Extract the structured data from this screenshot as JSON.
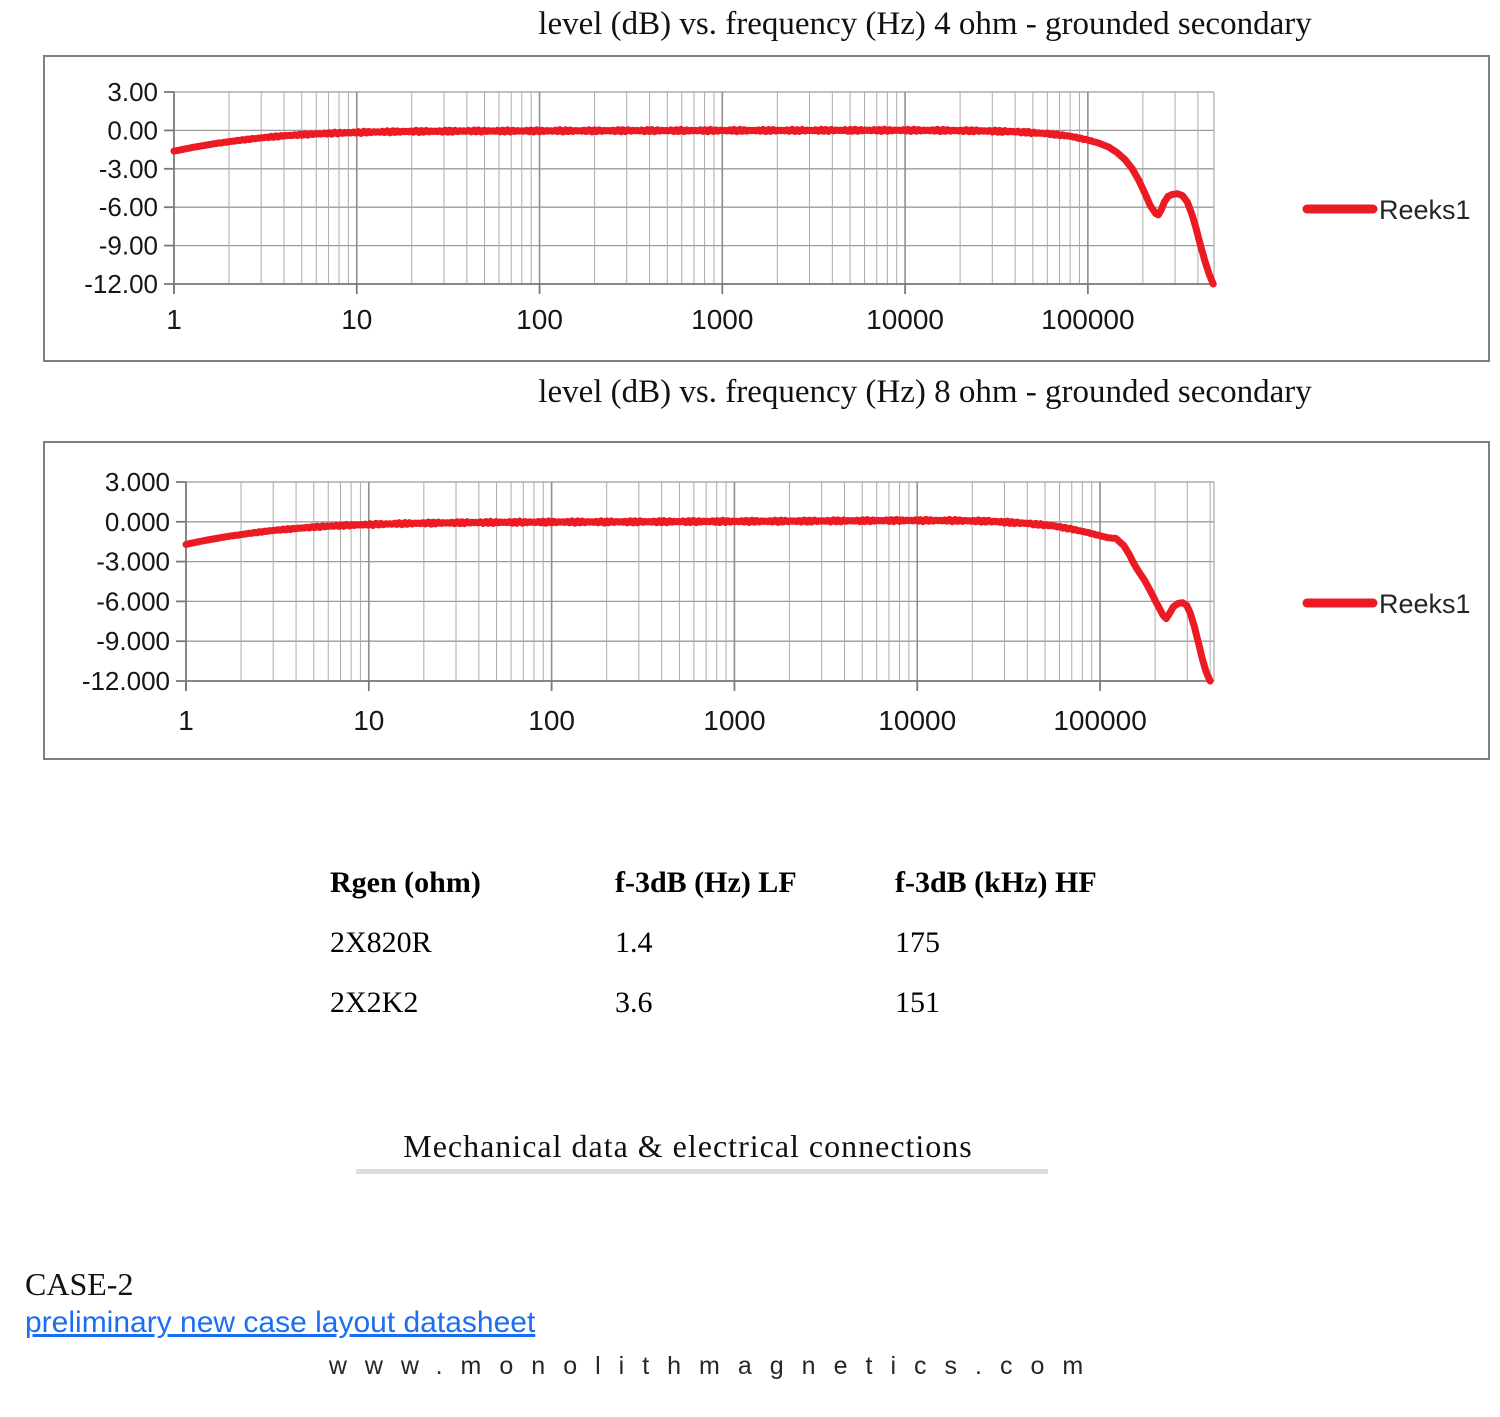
{
  "chart_data": [
    {
      "type": "line",
      "title": "level (dB) vs. frequency (Hz) 4 ohm - grounded secondary",
      "x_scale": "log",
      "xlim": [
        1,
        490000
      ],
      "ylim": [
        -12,
        3
      ],
      "grid": true,
      "legend_position": "right",
      "x_tick_labels": [
        "1",
        "10",
        "100",
        "1000",
        "10000",
        "100000"
      ],
      "x_tick_values": [
        1,
        10,
        100,
        1000,
        10000,
        100000
      ],
      "y_tick_labels": [
        "3.00",
        "0.00",
        "-3.00",
        "-6.00",
        "-9.00",
        "-12.00"
      ],
      "y_tick_values": [
        3,
        0,
        -3,
        -6,
        -9,
        -12
      ],
      "series": [
        {
          "name": "Reeks1",
          "color": "#ec1b23",
          "points": [
            [
              1,
              -1.62
            ],
            [
              1.3,
              -1.3
            ],
            [
              1.7,
              -1.02
            ],
            [
              2.2,
              -0.8
            ],
            [
              3,
              -0.58
            ],
            [
              4,
              -0.42
            ],
            [
              5.5,
              -0.3
            ],
            [
              8,
              -0.2
            ],
            [
              12,
              -0.13
            ],
            [
              20,
              -0.08
            ],
            [
              40,
              -0.05
            ],
            [
              100,
              -0.04
            ],
            [
              300,
              -0.02
            ],
            [
              1000,
              -0.01
            ],
            [
              3000,
              0
            ],
            [
              8000,
              0.01
            ],
            [
              15000,
              0
            ],
            [
              25000,
              -0.03
            ],
            [
              40000,
              -0.1
            ],
            [
              60000,
              -0.25
            ],
            [
              80000,
              -0.45
            ],
            [
              100000,
              -0.75
            ],
            [
              115000,
              -1
            ],
            [
              130000,
              -1.3
            ],
            [
              145000,
              -1.75
            ],
            [
              160000,
              -2.3
            ],
            [
              175000,
              -3
            ],
            [
              190000,
              -3.9
            ],
            [
              205000,
              -4.9
            ],
            [
              220000,
              -5.9
            ],
            [
              235000,
              -6.5
            ],
            [
              243000,
              -6.6
            ],
            [
              252000,
              -6.2
            ],
            [
              262000,
              -5.6
            ],
            [
              275000,
              -5.15
            ],
            [
              290000,
              -5
            ],
            [
              310000,
              -4.95
            ],
            [
              330000,
              -5.1
            ],
            [
              350000,
              -5.6
            ],
            [
              370000,
              -6.5
            ],
            [
              390000,
              -7.6
            ],
            [
              410000,
              -8.8
            ],
            [
              435000,
              -10.1
            ],
            [
              460000,
              -11.2
            ],
            [
              485000,
              -12
            ]
          ]
        }
      ]
    },
    {
      "type": "line",
      "title": "level (dB) vs. frequency (Hz) 8 ohm - grounded secondary",
      "x_scale": "log",
      "xlim": [
        1,
        420000
      ],
      "ylim": [
        -12,
        3
      ],
      "grid": true,
      "legend_position": "right",
      "x_tick_labels": [
        "1",
        "10",
        "100",
        "1000",
        "10000",
        "100000"
      ],
      "x_tick_values": [
        1,
        10,
        100,
        1000,
        10000,
        100000
      ],
      "y_tick_labels": [
        "3.000",
        "0.000",
        "-3.000",
        "-6.000",
        "-9.000",
        "-12.000"
      ],
      "y_tick_values": [
        3,
        0,
        -3,
        -6,
        -9,
        -12
      ],
      "series": [
        {
          "name": "Reeks1",
          "color": "#ec1b23",
          "points": [
            [
              1,
              -1.7
            ],
            [
              1.3,
              -1.38
            ],
            [
              1.7,
              -1.1
            ],
            [
              2.2,
              -0.88
            ],
            [
              3,
              -0.65
            ],
            [
              4,
              -0.5
            ],
            [
              5.5,
              -0.36
            ],
            [
              8,
              -0.25
            ],
            [
              12,
              -0.17
            ],
            [
              20,
              -0.1
            ],
            [
              40,
              -0.05
            ],
            [
              100,
              -0.02
            ],
            [
              300,
              0
            ],
            [
              1000,
              0.03
            ],
            [
              3000,
              0.06
            ],
            [
              8000,
              0.1
            ],
            [
              15000,
              0.1
            ],
            [
              25000,
              0.04
            ],
            [
              40000,
              -0.12
            ],
            [
              55000,
              -0.3
            ],
            [
              70000,
              -0.55
            ],
            [
              85000,
              -0.8
            ],
            [
              100000,
              -1.05
            ],
            [
              110000,
              -1.2
            ],
            [
              122000,
              -1.25
            ],
            [
              135000,
              -1.8
            ],
            [
              145000,
              -2.5
            ],
            [
              151000,
              -3
            ],
            [
              160000,
              -3.6
            ],
            [
              175000,
              -4.4
            ],
            [
              190000,
              -5.3
            ],
            [
              205000,
              -6.2
            ],
            [
              220000,
              -7
            ],
            [
              230000,
              -7.3
            ],
            [
              240000,
              -6.9
            ],
            [
              252000,
              -6.4
            ],
            [
              267000,
              -6.15
            ],
            [
              283000,
              -6.1
            ],
            [
              298000,
              -6.3
            ],
            [
              312000,
              -6.9
            ],
            [
              328000,
              -7.9
            ],
            [
              345000,
              -9.1
            ],
            [
              362000,
              -10.3
            ],
            [
              380000,
              -11.3
            ],
            [
              400000,
              -12
            ]
          ]
        }
      ]
    }
  ],
  "table": {
    "headers": [
      "Rgen (ohm)",
      "f-3dB (Hz) LF",
      "f-3dB (kHz) HF"
    ],
    "rows": [
      [
        "2X820R",
        "1.4",
        "175"
      ],
      [
        "2X2K2",
        "3.6",
        "151"
      ]
    ]
  },
  "sections": {
    "mech_heading": "Mechanical data & electrical connections",
    "case_label": "CASE-2",
    "link_text": "preliminary new case layout datasheet",
    "footer_url": "www.monolithmagnetics.com"
  },
  "colors": {
    "series_red": "#ec1b23",
    "link_blue": "#1b6ef3",
    "grid_minor": "#ababab",
    "grid_major": "#8f8f8f",
    "axis": "#7a7a7a",
    "frame_border": "#7f7f7f",
    "heading_underline": "#dedede"
  }
}
